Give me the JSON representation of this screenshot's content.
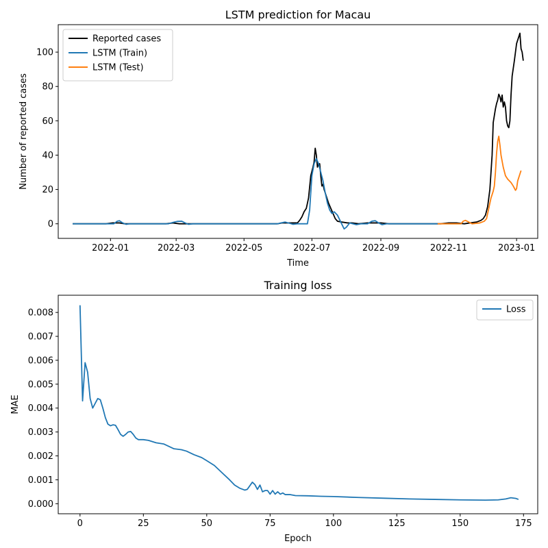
{
  "chart_data": [
    {
      "type": "line",
      "title": "LSTM prediction for Macau",
      "xlabel": "Time",
      "ylabel": "Number of reported cases",
      "x_axis": "date",
      "xlim": [
        "2021-11-15",
        "2023-01-20"
      ],
      "ylim": [
        -8.5,
        116
      ],
      "x_ticks": [
        "2022-01-01",
        "2022-03-01",
        "2022-05-01",
        "2022-07-01",
        "2022-09-01",
        "2022-11-01",
        "2023-01-01"
      ],
      "x_tick_labels": [
        "2022-01",
        "2022-03",
        "2022-05",
        "2022-07",
        "2022-09",
        "2022-11",
        "2023-01"
      ],
      "y_ticks": [
        0,
        20,
        40,
        60,
        80,
        100
      ],
      "y_tick_labels": [
        "0",
        "20",
        "40",
        "60",
        "80",
        "100"
      ],
      "grid": false,
      "legend_position": "top-left",
      "series": [
        {
          "name": "Reported cases",
          "color": "#000000",
          "points": [
            [
              "2021-11-28",
              0
            ],
            [
              "2021-12-28",
              0
            ],
            [
              "2022-01-03",
              0.5
            ],
            [
              "2022-01-09",
              0.5
            ],
            [
              "2022-01-14",
              0
            ],
            [
              "2022-02-20",
              0
            ],
            [
              "2022-02-26",
              0.5
            ],
            [
              "2022-03-04",
              0
            ],
            [
              "2022-03-09",
              0
            ],
            [
              "2022-05-31",
              0
            ],
            [
              "2022-06-04",
              0.5
            ],
            [
              "2022-06-12",
              0.5
            ],
            [
              "2022-06-18",
              0.5
            ],
            [
              "2022-06-20",
              2
            ],
            [
              "2022-06-22",
              4
            ],
            [
              "2022-06-24",
              7
            ],
            [
              "2022-06-26",
              9
            ],
            [
              "2022-06-28",
              15
            ],
            [
              "2022-06-30",
              28
            ],
            [
              "2022-07-02",
              33
            ],
            [
              "2022-07-03",
              36
            ],
            [
              "2022-07-04",
              44
            ],
            [
              "2022-07-05",
              40
            ],
            [
              "2022-07-06",
              33
            ],
            [
              "2022-07-07",
              35
            ],
            [
              "2022-07-08",
              35
            ],
            [
              "2022-07-09",
              28
            ],
            [
              "2022-07-10",
              22
            ],
            [
              "2022-07-11",
              23
            ],
            [
              "2022-07-12",
              20
            ],
            [
              "2022-07-14",
              16
            ],
            [
              "2022-07-16",
              12
            ],
            [
              "2022-07-18",
              9
            ],
            [
              "2022-07-20",
              6
            ],
            [
              "2022-07-22",
              3
            ],
            [
              "2022-07-24",
              1.5
            ],
            [
              "2022-07-28",
              1
            ],
            [
              "2022-08-02",
              0.5
            ],
            [
              "2022-08-06",
              0.5
            ],
            [
              "2022-08-12",
              0
            ],
            [
              "2022-08-20",
              0.5
            ],
            [
              "2022-09-01",
              0.5
            ],
            [
              "2022-09-08",
              0
            ],
            [
              "2022-10-25",
              0
            ],
            [
              "2022-11-01",
              0.5
            ],
            [
              "2022-11-08",
              0.5
            ],
            [
              "2022-11-15",
              0
            ],
            [
              "2022-11-20",
              0.5
            ],
            [
              "2022-11-26",
              1
            ],
            [
              "2022-11-30",
              2
            ],
            [
              "2022-12-02",
              3
            ],
            [
              "2022-12-04",
              5
            ],
            [
              "2022-12-06",
              10
            ],
            [
              "2022-12-08",
              20
            ],
            [
              "2022-12-10",
              40
            ],
            [
              "2022-12-11",
              59
            ],
            [
              "2022-12-13",
              67
            ],
            [
              "2022-12-14",
              70
            ],
            [
              "2022-12-15",
              72
            ],
            [
              "2022-12-16",
              75.5
            ],
            [
              "2022-12-17",
              74
            ],
            [
              "2022-12-18",
              71
            ],
            [
              "2022-12-19",
              75
            ],
            [
              "2022-12-20",
              68
            ],
            [
              "2022-12-21",
              71
            ],
            [
              "2022-12-22",
              68
            ],
            [
              "2022-12-23",
              60
            ],
            [
              "2022-12-24",
              57
            ],
            [
              "2022-12-25",
              56
            ],
            [
              "2022-12-26",
              60
            ],
            [
              "2022-12-27",
              75
            ],
            [
              "2022-12-28",
              86
            ],
            [
              "2022-12-30",
              95
            ],
            [
              "2023-01-01",
              105
            ],
            [
              "2023-01-03",
              109
            ],
            [
              "2023-01-04",
              111
            ],
            [
              "2023-01-05",
              102
            ],
            [
              "2023-01-06",
              100
            ],
            [
              "2023-01-07",
              95
            ]
          ]
        },
        {
          "name": "LSTM (Train)",
          "color": "#1f77b4",
          "points": [
            [
              "2021-11-28",
              0
            ],
            [
              "2022-01-04",
              0
            ],
            [
              "2022-01-07",
              1.5
            ],
            [
              "2022-01-09",
              1.8
            ],
            [
              "2022-01-12",
              0.5
            ],
            [
              "2022-01-15",
              -0.3
            ],
            [
              "2022-01-18",
              0
            ],
            [
              "2022-02-22",
              0
            ],
            [
              "2022-02-26",
              0.8
            ],
            [
              "2022-03-02",
              1.4
            ],
            [
              "2022-03-06",
              1.5
            ],
            [
              "2022-03-09",
              0.5
            ],
            [
              "2022-03-12",
              -0.3
            ],
            [
              "2022-03-16",
              0
            ],
            [
              "2022-05-31",
              0
            ],
            [
              "2022-06-03",
              0.5
            ],
            [
              "2022-06-07",
              1
            ],
            [
              "2022-06-11",
              0.3
            ],
            [
              "2022-06-14",
              -0.3
            ],
            [
              "2022-06-18",
              0
            ],
            [
              "2022-06-27",
              0
            ],
            [
              "2022-06-29",
              8
            ],
            [
              "2022-07-01",
              28
            ],
            [
              "2022-07-03",
              35
            ],
            [
              "2022-07-05",
              38
            ],
            [
              "2022-07-07",
              35
            ],
            [
              "2022-07-09",
              30
            ],
            [
              "2022-07-11",
              25
            ],
            [
              "2022-07-13",
              18
            ],
            [
              "2022-07-15",
              12
            ],
            [
              "2022-07-17",
              8
            ],
            [
              "2022-07-19",
              6
            ],
            [
              "2022-07-21",
              7
            ],
            [
              "2022-07-24",
              5
            ],
            [
              "2022-07-27",
              1
            ],
            [
              "2022-07-30",
              -3
            ],
            [
              "2022-08-01",
              -2
            ],
            [
              "2022-08-04",
              0.5
            ],
            [
              "2022-08-07",
              0
            ],
            [
              "2022-08-10",
              -0.5
            ],
            [
              "2022-08-14",
              0
            ],
            [
              "2022-08-20",
              0
            ],
            [
              "2022-08-24",
              1.5
            ],
            [
              "2022-08-27",
              1.8
            ],
            [
              "2022-08-30",
              0.5
            ],
            [
              "2022-09-02",
              -0.5
            ],
            [
              "2022-09-06",
              0
            ],
            [
              "2022-10-22",
              0
            ]
          ]
        },
        {
          "name": "LSTM (Test)",
          "color": "#ff7f0e",
          "points": [
            [
              "2022-10-22",
              0
            ],
            [
              "2022-11-12",
              0
            ],
            [
              "2022-11-14",
              1.5
            ],
            [
              "2022-11-16",
              2
            ],
            [
              "2022-11-19",
              1
            ],
            [
              "2022-11-22",
              0
            ],
            [
              "2022-11-26",
              0.3
            ],
            [
              "2022-11-29",
              0.5
            ],
            [
              "2022-12-01",
              1
            ],
            [
              "2022-12-03",
              1.5
            ],
            [
              "2022-12-05",
              3
            ],
            [
              "2022-12-07",
              9
            ],
            [
              "2022-12-09",
              15
            ],
            [
              "2022-12-11",
              19
            ],
            [
              "2022-12-12",
              22
            ],
            [
              "2022-12-13",
              30
            ],
            [
              "2022-12-14",
              41
            ],
            [
              "2022-12-15",
              48
            ],
            [
              "2022-12-16",
              51
            ],
            [
              "2022-12-17",
              46
            ],
            [
              "2022-12-18",
              40
            ],
            [
              "2022-12-20",
              33
            ],
            [
              "2022-12-22",
              28
            ],
            [
              "2022-12-24",
              26
            ],
            [
              "2022-12-27",
              24
            ],
            [
              "2022-12-29",
              22
            ],
            [
              "2022-12-31",
              19.5
            ],
            [
              "2023-01-01",
              20.5
            ],
            [
              "2023-01-02",
              25
            ],
            [
              "2023-01-04",
              29
            ],
            [
              "2023-01-05",
              31
            ]
          ]
        }
      ]
    },
    {
      "type": "line",
      "title": "Training loss",
      "xlabel": "Epoch",
      "ylabel": "MAE",
      "xlim": [
        -8.6,
        180.6
      ],
      "ylim": [
        -0.00042,
        0.00872
      ],
      "x_ticks": [
        0,
        25,
        50,
        75,
        100,
        125,
        150,
        175
      ],
      "x_tick_labels": [
        "0",
        "25",
        "50",
        "75",
        "100",
        "125",
        "150",
        "175"
      ],
      "y_ticks": [
        0,
        0.001,
        0.002,
        0.003,
        0.004,
        0.005,
        0.006,
        0.007,
        0.008
      ],
      "y_tick_labels": [
        "0.000",
        "0.001",
        "0.002",
        "0.003",
        "0.004",
        "0.005",
        "0.006",
        "0.007",
        "0.008"
      ],
      "grid": false,
      "legend_position": "top-right",
      "series": [
        {
          "name": "Loss",
          "color": "#1f77b4",
          "points": [
            [
              0,
              0.0083
            ],
            [
              1,
              0.0043
            ],
            [
              2,
              0.0059
            ],
            [
              3,
              0.0055
            ],
            [
              4,
              0.0044
            ],
            [
              5,
              0.004
            ],
            [
              6,
              0.0042
            ],
            [
              7,
              0.0044
            ],
            [
              8,
              0.00435
            ],
            [
              9,
              0.004
            ],
            [
              10,
              0.0036
            ],
            [
              11,
              0.00333
            ],
            [
              12,
              0.00326
            ],
            [
              13,
              0.0033
            ],
            [
              14,
              0.00328
            ],
            [
              15,
              0.0031
            ],
            [
              16,
              0.0029
            ],
            [
              17,
              0.00282
            ],
            [
              18,
              0.0029
            ],
            [
              19,
              0.003
            ],
            [
              20,
              0.00302
            ],
            [
              21,
              0.0029
            ],
            [
              22,
              0.00275
            ],
            [
              23,
              0.00268
            ],
            [
              25,
              0.00268
            ],
            [
              27,
              0.00265
            ],
            [
              30,
              0.00255
            ],
            [
              33,
              0.0025
            ],
            [
              35,
              0.0024
            ],
            [
              37,
              0.0023
            ],
            [
              40,
              0.00226
            ],
            [
              42,
              0.0022
            ],
            [
              45,
              0.00205
            ],
            [
              48,
              0.00193
            ],
            [
              50,
              0.0018
            ],
            [
              53,
              0.0016
            ],
            [
              56,
              0.0013
            ],
            [
              59,
              0.001
            ],
            [
              61,
              0.00078
            ],
            [
              63,
              0.00065
            ],
            [
              65,
              0.00057
            ],
            [
              66,
              0.0006
            ],
            [
              68,
              0.0009
            ],
            [
              69,
              0.0008
            ],
            [
              70,
              0.0006
            ],
            [
              71,
              0.00078
            ],
            [
              72,
              0.0005
            ],
            [
              73,
              0.00055
            ],
            [
              74,
              0.00055
            ],
            [
              75,
              0.0004
            ],
            [
              76,
              0.00055
            ],
            [
              77,
              0.0004
            ],
            [
              78,
              0.0005
            ],
            [
              79,
              0.0004
            ],
            [
              80,
              0.00045
            ],
            [
              81,
              0.00038
            ],
            [
              83,
              0.00038
            ],
            [
              85,
              0.00034
            ],
            [
              90,
              0.00033
            ],
            [
              95,
              0.00031
            ],
            [
              100,
              0.0003
            ],
            [
              110,
              0.00026
            ],
            [
              120,
              0.00023
            ],
            [
              130,
              0.0002
            ],
            [
              140,
              0.00018
            ],
            [
              150,
              0.00016
            ],
            [
              160,
              0.00015
            ],
            [
              165,
              0.00016
            ],
            [
              168,
              0.0002
            ],
            [
              170,
              0.00025
            ],
            [
              172,
              0.00022
            ],
            [
              173,
              0.00018
            ]
          ]
        }
      ]
    }
  ]
}
